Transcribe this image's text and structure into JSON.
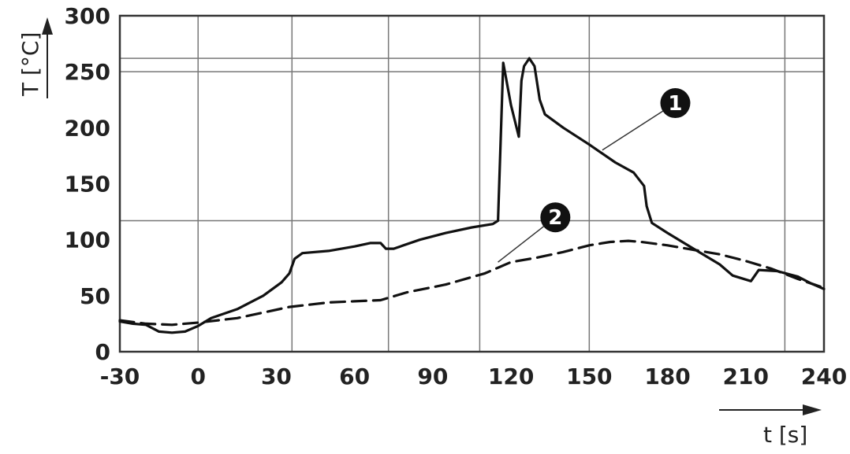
{
  "chart_data": {
    "type": "line",
    "xlabel": "t [s]",
    "ylabel": "T [°C]",
    "xlim": [
      -30,
      240
    ],
    "ylim": [
      0,
      300
    ],
    "x_ticks": [
      -30,
      0,
      30,
      60,
      90,
      120,
      150,
      180,
      210,
      240
    ],
    "y_ticks": [
      0,
      50,
      100,
      150,
      200,
      250,
      300
    ],
    "x_tick_labels": [
      "-30",
      "0",
      "30",
      "60",
      "90",
      "120",
      "150",
      "180",
      "210",
      "240"
    ],
    "y_tick_labels": [
      "0",
      "50",
      "100",
      "150",
      "200",
      "250",
      "300"
    ],
    "vertical_gridlines": [
      0,
      36,
      73,
      108,
      150,
      225
    ],
    "horizontal_gridlines": [
      117,
      250,
      262
    ],
    "grid": true,
    "series": [
      {
        "name": "1",
        "style": "solid",
        "color": "#111111",
        "points": [
          [
            -30,
            27
          ],
          [
            -25,
            25
          ],
          [
            -20,
            24
          ],
          [
            -15,
            18
          ],
          [
            -10,
            17
          ],
          [
            -5,
            18
          ],
          [
            0,
            23
          ],
          [
            5,
            30
          ],
          [
            15,
            38
          ],
          [
            25,
            50
          ],
          [
            32,
            62
          ],
          [
            35,
            70
          ],
          [
            37,
            83
          ],
          [
            40,
            88
          ],
          [
            50,
            90
          ],
          [
            60,
            94
          ],
          [
            66,
            97
          ],
          [
            70,
            97
          ],
          [
            72,
            92
          ],
          [
            75,
            92
          ],
          [
            85,
            100
          ],
          [
            95,
            106
          ],
          [
            105,
            111
          ],
          [
            113,
            114
          ],
          [
            115,
            117
          ],
          [
            117,
            258
          ],
          [
            120,
            220
          ],
          [
            123,
            192
          ],
          [
            124,
            242
          ],
          [
            125,
            255
          ],
          [
            127,
            262
          ],
          [
            129,
            255
          ],
          [
            131,
            225
          ],
          [
            133,
            212
          ],
          [
            140,
            200
          ],
          [
            150,
            185
          ],
          [
            160,
            169
          ],
          [
            167,
            160
          ],
          [
            171,
            148
          ],
          [
            172,
            130
          ],
          [
            174,
            115
          ],
          [
            180,
            106
          ],
          [
            190,
            92
          ],
          [
            200,
            78
          ],
          [
            205,
            68
          ],
          [
            212,
            63
          ],
          [
            215,
            73
          ],
          [
            222,
            72
          ],
          [
            230,
            67
          ],
          [
            235,
            61
          ],
          [
            240,
            56
          ]
        ]
      },
      {
        "name": "2",
        "style": "dashed",
        "color": "#111111",
        "points": [
          [
            -30,
            28
          ],
          [
            -20,
            25
          ],
          [
            -10,
            24
          ],
          [
            0,
            26
          ],
          [
            15,
            30
          ],
          [
            35,
            40
          ],
          [
            50,
            44
          ],
          [
            60,
            45
          ],
          [
            70,
            46
          ],
          [
            80,
            53
          ],
          [
            95,
            60
          ],
          [
            110,
            70
          ],
          [
            120,
            80
          ],
          [
            130,
            84
          ],
          [
            140,
            89
          ],
          [
            150,
            95
          ],
          [
            158,
            98
          ],
          [
            165,
            99
          ],
          [
            170,
            98
          ],
          [
            180,
            95
          ],
          [
            190,
            91
          ],
          [
            200,
            87
          ],
          [
            210,
            81
          ],
          [
            220,
            74
          ],
          [
            230,
            65
          ],
          [
            240,
            57
          ]
        ]
      }
    ],
    "annotations": [
      {
        "label": "1",
        "series": "1",
        "x": 183,
        "y": 222,
        "target_x": 155,
        "target_y": 180
      },
      {
        "label": "2",
        "series": "2",
        "x": 137,
        "y": 120,
        "target_x": 115,
        "target_y": 80
      }
    ]
  }
}
